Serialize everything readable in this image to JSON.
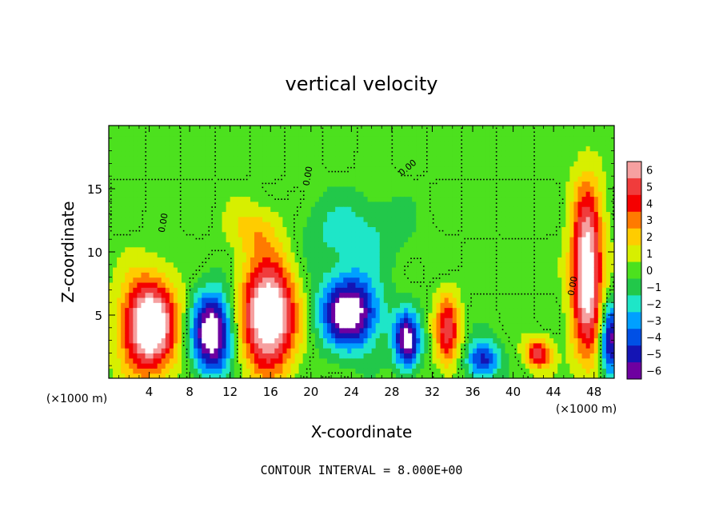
{
  "chart_data": {
    "type": "heatmap",
    "title": "vertical velocity",
    "xlabel": "X-coordinate",
    "ylabel": "Z-coordinate",
    "x_unit": "(×1000 m)",
    "y_unit": "(×1000 m)",
    "xlim": [
      0,
      50
    ],
    "ylim": [
      0,
      20
    ],
    "x_ticks": [
      4,
      8,
      12,
      16,
      20,
      24,
      28,
      32,
      36,
      40,
      44,
      48
    ],
    "y_ticks": [
      5,
      10,
      15
    ],
    "colorbar": {
      "ticks": [
        6,
        5,
        4,
        3,
        2,
        1,
        0,
        -1,
        -2,
        -3,
        -4,
        -5,
        -6
      ],
      "colors": [
        "#f6a0a0",
        "#f03c3c",
        "#f50000",
        "#ff7a00",
        "#ffcc00",
        "#d7ef00",
        "#4ce11e",
        "#22c84a",
        "#1ee6c8",
        "#00a0ff",
        "#0050e6",
        "#1414b4",
        "#6e00a0"
      ]
    },
    "contour_label": "0.00",
    "footer": "CONTOUR INTERVAL = 8.000E+00",
    "features": [
      {
        "x": 4.0,
        "z": 4.2,
        "w": 9,
        "rx": 2.6,
        "rz": 3.6
      },
      {
        "x": 10.2,
        "z": 3.6,
        "w": -8,
        "rx": 2.0,
        "rz": 3.2
      },
      {
        "x": 15.8,
        "z": 5.0,
        "w": 9,
        "rx": 2.6,
        "rz": 4.2
      },
      {
        "x": 23.8,
        "z": 5.2,
        "w": -8,
        "rx": 2.8,
        "rz": 2.8
      },
      {
        "x": 29.5,
        "z": 3.0,
        "w": -7,
        "rx": 1.3,
        "rz": 2.2
      },
      {
        "x": 33.5,
        "z": 3.8,
        "w": 5,
        "rx": 1.2,
        "rz": 2.8
      },
      {
        "x": 37.0,
        "z": 1.5,
        "w": -5,
        "rx": 1.6,
        "rz": 1.6
      },
      {
        "x": 42.5,
        "z": 2.0,
        "w": 5,
        "rx": 1.3,
        "rz": 1.2
      },
      {
        "x": 47.3,
        "z": 8.5,
        "w": 8,
        "rx": 1.5,
        "rz": 6.5
      },
      {
        "x": 49.6,
        "z": 3.0,
        "w": -6,
        "rx": 0.9,
        "rz": 3.0
      },
      {
        "x": 24.0,
        "z": 11.5,
        "w": -2,
        "rx": 5.0,
        "rz": 3.0
      },
      {
        "x": 14.5,
        "z": 11.8,
        "w": 2,
        "rx": 2.5,
        "rz": 2.0
      }
    ]
  }
}
